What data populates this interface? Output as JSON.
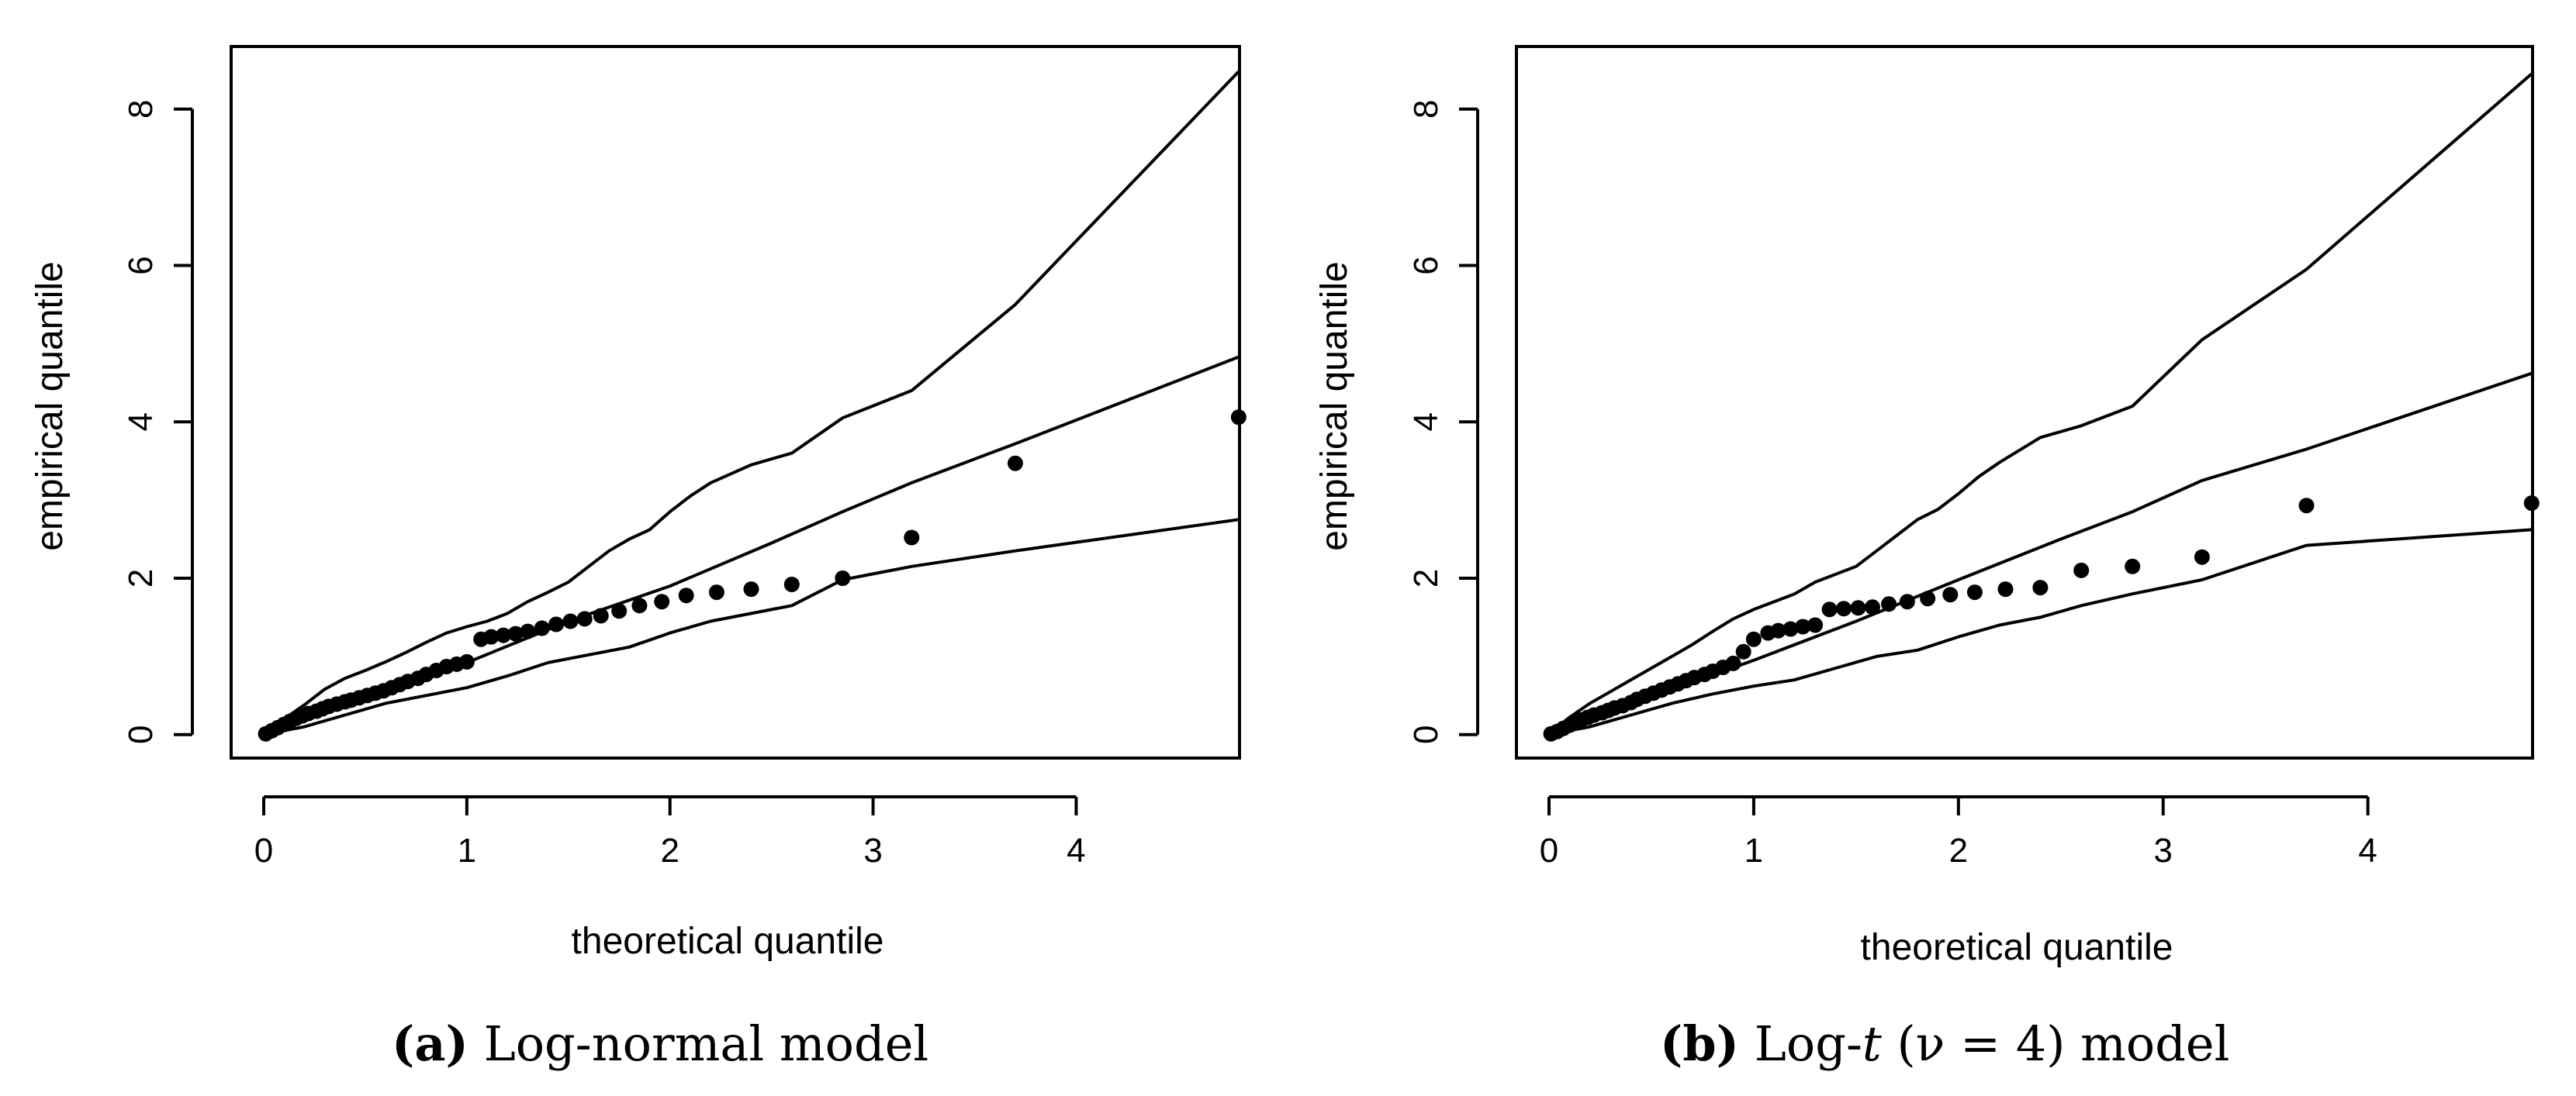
{
  "chart_data": [
    {
      "type": "scatter",
      "xlabel": "theoretical quantile",
      "ylabel": "empirical quantile",
      "xlim": [
        0,
        4.85
      ],
      "ylim": [
        -0.3,
        8.8
      ],
      "xticks": [
        0,
        1,
        2,
        3,
        4
      ],
      "yticks": [
        0,
        2,
        4,
        6,
        8
      ],
      "caption": {
        "tag": "(a)",
        "text": "Log-normal model"
      },
      "points": {
        "x": [
          0.01,
          0.04,
          0.07,
          0.1,
          0.13,
          0.16,
          0.19,
          0.22,
          0.26,
          0.29,
          0.32,
          0.36,
          0.4,
          0.43,
          0.47,
          0.51,
          0.55,
          0.59,
          0.63,
          0.67,
          0.71,
          0.76,
          0.8,
          0.85,
          0.9,
          0.95,
          1.0,
          1.07,
          1.12,
          1.18,
          1.24,
          1.3,
          1.37,
          1.44,
          1.51,
          1.58,
          1.66,
          1.75,
          1.85,
          1.96,
          2.08,
          2.23,
          2.4,
          2.6,
          2.85,
          3.19,
          3.7,
          4.8
        ],
        "y": [
          0.01,
          0.05,
          0.09,
          0.13,
          0.17,
          0.21,
          0.24,
          0.27,
          0.3,
          0.33,
          0.36,
          0.39,
          0.42,
          0.44,
          0.47,
          0.5,
          0.53,
          0.56,
          0.6,
          0.64,
          0.68,
          0.72,
          0.77,
          0.82,
          0.87,
          0.9,
          0.93,
          1.22,
          1.25,
          1.27,
          1.29,
          1.32,
          1.36,
          1.41,
          1.45,
          1.48,
          1.52,
          1.58,
          1.65,
          1.7,
          1.78,
          1.82,
          1.86,
          1.92,
          2.0,
          2.52,
          3.47,
          4.06
        ]
      },
      "lines": [
        {
          "name": "upper envelope",
          "x": [
            0,
            0.1,
            0.2,
            0.3,
            0.4,
            0.5,
            0.6,
            0.7,
            0.8,
            0.9,
            1.0,
            1.1,
            1.2,
            1.3,
            1.4,
            1.5,
            1.6,
            1.7,
            1.8,
            1.9,
            2.0,
            2.1,
            2.2,
            2.4,
            2.6,
            2.85,
            3.19,
            3.7,
            4.8
          ],
          "y": [
            0,
            0.2,
            0.38,
            0.58,
            0.72,
            0.82,
            0.93,
            1.05,
            1.18,
            1.3,
            1.38,
            1.45,
            1.55,
            1.7,
            1.82,
            1.95,
            2.15,
            2.35,
            2.5,
            2.62,
            2.85,
            3.05,
            3.22,
            3.45,
            3.6,
            4.05,
            4.4,
            5.5,
            8.48
          ]
        },
        {
          "name": "centre line",
          "x": [
            0,
            0.5,
            1.0,
            1.5,
            2.0,
            2.5,
            2.85,
            3.19,
            3.7,
            4.8
          ],
          "y": [
            0,
            0.45,
            0.92,
            1.45,
            1.9,
            2.45,
            2.85,
            3.22,
            3.72,
            4.83
          ]
        },
        {
          "name": "lower envelope",
          "x": [
            0,
            0.2,
            0.4,
            0.6,
            0.8,
            1.0,
            1.2,
            1.4,
            1.6,
            1.8,
            2.0,
            2.2,
            2.4,
            2.6,
            2.85,
            3.19,
            3.7,
            4.8
          ],
          "y": [
            0,
            0.1,
            0.25,
            0.4,
            0.5,
            0.6,
            0.75,
            0.92,
            1.02,
            1.12,
            1.3,
            1.45,
            1.55,
            1.65,
            1.98,
            2.15,
            2.35,
            2.75
          ]
        }
      ]
    },
    {
      "type": "scatter",
      "xlabel": "theoretical quantile",
      "ylabel": "empirical quantile",
      "xlim": [
        0,
        4.85
      ],
      "ylim": [
        -0.3,
        8.8
      ],
      "xticks": [
        0,
        1,
        2,
        3,
        4
      ],
      "yticks": [
        0,
        2,
        4,
        6,
        8
      ],
      "caption": {
        "tag": "(b)",
        "text_before": "Log-",
        "italic": "t",
        "text_after": " (ν = 4) model"
      },
      "points": {
        "x": [
          0.01,
          0.04,
          0.07,
          0.1,
          0.13,
          0.16,
          0.19,
          0.22,
          0.26,
          0.29,
          0.32,
          0.36,
          0.4,
          0.43,
          0.47,
          0.51,
          0.55,
          0.59,
          0.63,
          0.67,
          0.71,
          0.76,
          0.8,
          0.85,
          0.9,
          0.95,
          1.0,
          1.07,
          1.12,
          1.18,
          1.24,
          1.3,
          1.37,
          1.44,
          1.51,
          1.58,
          1.66,
          1.75,
          1.85,
          1.96,
          2.08,
          2.23,
          2.4,
          2.6,
          2.85,
          3.19,
          3.7,
          4.8
        ],
        "y": [
          0.01,
          0.04,
          0.08,
          0.12,
          0.16,
          0.19,
          0.22,
          0.25,
          0.28,
          0.31,
          0.34,
          0.37,
          0.41,
          0.45,
          0.49,
          0.53,
          0.57,
          0.61,
          0.65,
          0.69,
          0.73,
          0.77,
          0.81,
          0.86,
          0.91,
          1.06,
          1.22,
          1.3,
          1.33,
          1.35,
          1.38,
          1.4,
          1.6,
          1.61,
          1.62,
          1.63,
          1.67,
          1.7,
          1.74,
          1.79,
          1.82,
          1.86,
          1.88,
          2.1,
          2.15,
          2.27,
          2.93,
          2.96
        ]
      },
      "lines": [
        {
          "name": "upper envelope",
          "x": [
            0,
            0.1,
            0.2,
            0.3,
            0.4,
            0.5,
            0.6,
            0.7,
            0.8,
            0.9,
            1.0,
            1.1,
            1.2,
            1.3,
            1.4,
            1.5,
            1.6,
            1.7,
            1.8,
            1.9,
            2.0,
            2.1,
            2.2,
            2.4,
            2.6,
            2.85,
            3.19,
            3.7,
            4.8
          ],
          "y": [
            0,
            0.22,
            0.4,
            0.55,
            0.7,
            0.85,
            1.0,
            1.15,
            1.32,
            1.48,
            1.6,
            1.7,
            1.8,
            1.95,
            2.05,
            2.15,
            2.35,
            2.55,
            2.75,
            2.88,
            3.08,
            3.3,
            3.48,
            3.8,
            3.95,
            4.2,
            5.05,
            5.95,
            8.45
          ]
        },
        {
          "name": "centre line",
          "x": [
            0,
            0.5,
            1.0,
            1.5,
            2.0,
            2.5,
            2.85,
            3.19,
            3.7,
            4.8
          ],
          "y": [
            0,
            0.48,
            0.95,
            1.45,
            1.98,
            2.5,
            2.85,
            3.25,
            3.65,
            4.62
          ]
        },
        {
          "name": "lower envelope",
          "x": [
            0,
            0.2,
            0.4,
            0.6,
            0.8,
            1.0,
            1.2,
            1.4,
            1.6,
            1.8,
            2.0,
            2.2,
            2.4,
            2.6,
            2.85,
            3.19,
            3.7,
            4.8
          ],
          "y": [
            0,
            0.1,
            0.25,
            0.4,
            0.52,
            0.62,
            0.7,
            0.85,
            1.0,
            1.08,
            1.25,
            1.4,
            1.5,
            1.65,
            1.8,
            1.98,
            2.42,
            2.62
          ]
        }
      ]
    }
  ]
}
